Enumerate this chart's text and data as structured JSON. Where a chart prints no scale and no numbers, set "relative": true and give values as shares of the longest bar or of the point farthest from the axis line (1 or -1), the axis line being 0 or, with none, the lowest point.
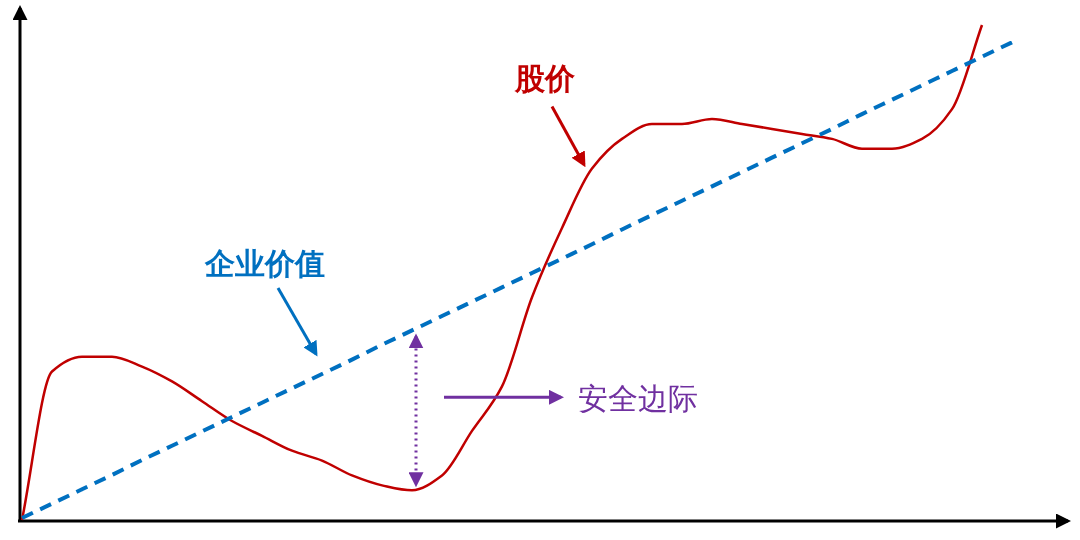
{
  "chart_data": {
    "type": "line",
    "relative": true,
    "categories": [
      null,
      null,
      null,
      null,
      null,
      null,
      null,
      null,
      null,
      null,
      null,
      null,
      null,
      null,
      null,
      null,
      null,
      null,
      null,
      null,
      null,
      null,
      null,
      null,
      null,
      null,
      null,
      null,
      null,
      null,
      null,
      null,
      null,
      null
    ],
    "series": [
      {
        "name": "股价",
        "color": "#c00000",
        "line_style": "solid",
        "values": [
          0.0,
          0.3,
          0.33,
          0.33,
          0.31,
          0.28,
          0.24,
          0.2,
          0.17,
          0.14,
          0.12,
          0.09,
          0.07,
          0.06,
          0.09,
          0.18,
          0.27,
          0.45,
          0.59,
          0.71,
          0.77,
          0.8,
          0.8,
          0.81,
          0.8,
          0.79,
          0.78,
          0.77,
          0.75,
          0.75,
          0.77,
          0.83,
          1,
          null
        ]
      },
      {
        "name": "企业价值",
        "color": "#0070c0",
        "line_style": "dashed",
        "values": [
          0.004,
          0.033,
          0.062,
          0.091,
          0.121,
          0.15,
          0.179,
          0.208,
          0.237,
          0.266,
          0.295,
          0.324,
          0.354,
          0.383,
          0.412,
          0.441,
          0.47,
          0.499,
          0.528,
          0.557,
          0.587,
          0.616,
          0.645,
          0.674,
          0.703,
          0.732,
          0.761,
          0.79,
          0.82,
          0.849,
          0.878,
          0.907,
          0.936,
          0.965
        ]
      }
    ],
    "annotations": [
      "安全边际"
    ],
    "marker": "none",
    "grid": false
  }
}
